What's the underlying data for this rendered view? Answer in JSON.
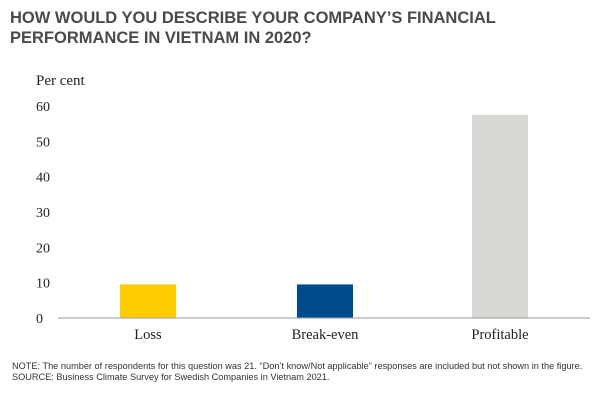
{
  "chart_data": {
    "type": "bar",
    "title": "HOW WOULD YOU DESCRIBE YOUR COMPANY’S FINANCIAL PERFORMANCE IN VIETNAM IN 2020?",
    "ylabel": "Per cent",
    "xlabel": "",
    "categories": [
      "Loss",
      "Break-even",
      "Profitable"
    ],
    "values": [
      9.5,
      9.5,
      57.5
    ],
    "colors": [
      "#FFCC00",
      "#004B8D",
      "#D7D7D3"
    ],
    "ylim": [
      0,
      60
    ],
    "yticks": [
      "0",
      "10",
      "20",
      "30",
      "40",
      "50",
      "60"
    ],
    "grid": false,
    "legend": "none"
  },
  "notes": {
    "note": "NOTE: The number of respondents for this question was 21. “Don’t know/Not applicable” responses are included but not shown in the figure.",
    "source": "SOURCE: Business Climate Survey for Swedish Companies in Vietnam 2021."
  }
}
